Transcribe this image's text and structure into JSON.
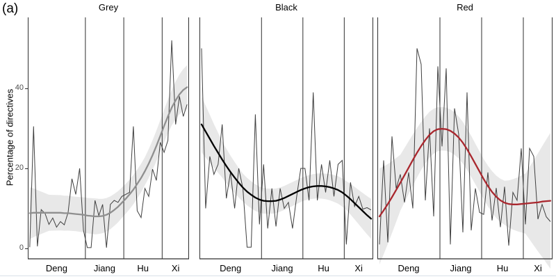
{
  "figure_label": "(a)",
  "chart_data": {
    "type": "line",
    "ylabel": "Percentage of directives",
    "yticks": [
      0,
      20,
      40
    ],
    "ylim": [
      -2.6,
      57.7
    ],
    "grid": false,
    "legend": "none",
    "x_eras": [
      {
        "label": "Deng",
        "n": 15
      },
      {
        "label": "Jiang",
        "n": 10
      },
      {
        "label": "Hu",
        "n": 10
      },
      {
        "label": "Xi",
        "n": 7
      }
    ],
    "panels": [
      {
        "title": "Grey",
        "trend_color": "#8f8f8f",
        "values": [
          0.3,
          30.5,
          0.5,
          9.7,
          8.7,
          6.0,
          7.6,
          5.3,
          6.7,
          5.9,
          9.0,
          17.4,
          13.5,
          20.0,
          4.5,
          0.2,
          0.2,
          12.0,
          8.2,
          11.0,
          0.2,
          11.0,
          12.0,
          11.5,
          13.0,
          13.5,
          14.0,
          30.5,
          9.4,
          7.7,
          15.0,
          13.0,
          19.8,
          17.0,
          26.5,
          24.0,
          27.0,
          52.0,
          31.0,
          38.0,
          33.0,
          36.0
        ],
        "smooth": [
          8.8,
          8.9,
          8.9,
          8.9,
          8.9,
          8.9,
          8.9,
          8.9,
          8.9,
          8.8,
          8.8,
          8.7,
          8.6,
          8.5,
          8.4,
          8.2,
          8.1,
          8.0,
          8.0,
          8.1,
          8.4,
          8.9,
          9.6,
          10.4,
          11.4,
          12.4,
          13.5,
          14.7,
          16.1,
          17.6,
          19.3,
          21.2,
          23.3,
          25.6,
          28.1,
          30.6,
          33.0,
          35.2,
          37.0,
          38.5,
          39.6,
          40.3
        ],
        "band_halfwidth_anchors": [
          [
            0,
            6.5
          ],
          [
            5,
            4.5
          ],
          [
            12,
            4.3
          ],
          [
            17,
            4.5
          ],
          [
            24,
            3.8
          ],
          [
            30,
            3.5
          ],
          [
            36,
            4.2
          ],
          [
            41,
            5.5
          ]
        ]
      },
      {
        "title": "Black",
        "trend_color": "#000000",
        "values": [
          50.0,
          10.0,
          23.0,
          18.5,
          21.0,
          31.0,
          12.5,
          19.0,
          10.0,
          20.0,
          15.0,
          0.3,
          0.3,
          33.5,
          6.0,
          21.0,
          5.0,
          15.0,
          5.5,
          15.0,
          10.0,
          11.5,
          5.0,
          13.0,
          20.0,
          20.0,
          12.0,
          39.0,
          12.0,
          21.0,
          14.0,
          22.0,
          13.0,
          21.0,
          22.0,
          1.0,
          16.5,
          10.5,
          13.0,
          9.8,
          10.2,
          9.6
        ],
        "smooth": [
          31.0,
          29.2,
          27.4,
          25.6,
          23.9,
          22.2,
          20.6,
          19.1,
          17.7,
          16.4,
          15.2,
          14.2,
          13.4,
          12.7,
          12.2,
          11.9,
          11.8,
          11.8,
          11.9,
          12.2,
          12.6,
          13.1,
          13.6,
          14.1,
          14.6,
          15.0,
          15.3,
          15.5,
          15.6,
          15.6,
          15.5,
          15.3,
          15.0,
          14.6,
          14.0,
          13.2,
          12.3,
          11.3,
          10.3,
          9.3,
          8.3,
          7.4
        ],
        "band_halfwidth_anchors": [
          [
            0,
            7.0
          ],
          [
            5,
            4.5
          ],
          [
            10,
            3.5
          ],
          [
            15,
            3.2
          ],
          [
            20,
            3.0
          ],
          [
            25,
            3.0
          ],
          [
            30,
            3.2
          ],
          [
            35,
            3.6
          ],
          [
            41,
            5.0
          ]
        ]
      },
      {
        "title": "Red",
        "trend_color": "#a9272e",
        "values": [
          1.0,
          22.0,
          1.5,
          28.0,
          15.0,
          18.5,
          11.5,
          19.0,
          10.0,
          50.0,
          46.0,
          12.0,
          30.0,
          8.0,
          45.5,
          25.5,
          45.0,
          1.0,
          35.0,
          28.5,
          4.0,
          39.0,
          4.5,
          15.0,
          9.0,
          8.5,
          19.0,
          7.0,
          15.1,
          5.3,
          15.4,
          0.7,
          14.0,
          12.0,
          25.0,
          6.0,
          25.0,
          23.0,
          7.3,
          11.0,
          7.9,
          6.7
        ],
        "smooth": [
          8.0,
          9.5,
          11.1,
          12.8,
          14.6,
          16.4,
          18.3,
          20.2,
          22.1,
          23.9,
          25.6,
          27.1,
          28.4,
          29.3,
          29.8,
          29.9,
          29.8,
          29.4,
          28.7,
          27.7,
          26.4,
          24.8,
          23.0,
          21.1,
          19.2,
          17.3,
          15.6,
          14.1,
          12.9,
          12.0,
          11.4,
          11.1,
          11.0,
          11.0,
          11.1,
          11.2,
          11.3,
          11.4,
          11.5,
          11.7,
          11.8,
          11.9
        ],
        "band_halfwidth_anchors": [
          [
            0,
            12.0
          ],
          [
            5,
            7.0
          ],
          [
            10,
            6.0
          ],
          [
            14,
            5.5
          ],
          [
            20,
            5.2
          ],
          [
            25,
            5.0
          ],
          [
            30,
            5.5
          ],
          [
            35,
            7.5
          ],
          [
            41,
            17.0
          ]
        ]
      }
    ]
  },
  "colors": {
    "yearly_line": "#3f3f3f",
    "era_divider": "#2e2e2e",
    "axis_line": "#2e2e2e",
    "confidence_band": "rgba(0,0,0,0.09)",
    "tick_text": "#4d4d4d",
    "bottom_rule": "#d9dfe8"
  }
}
